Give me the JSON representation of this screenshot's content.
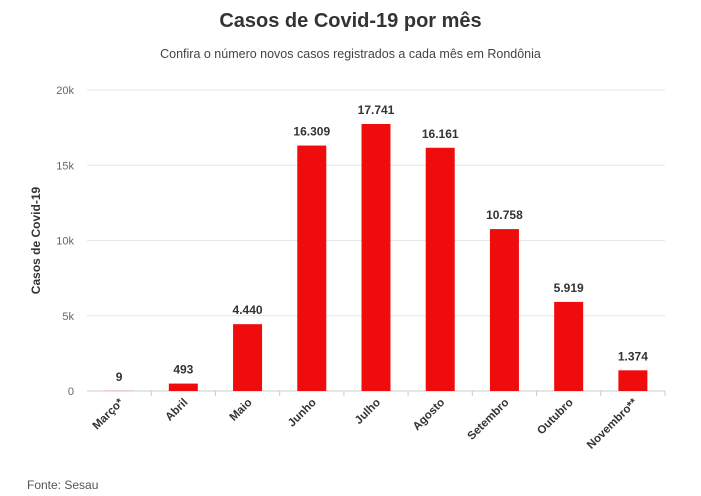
{
  "chart_data": {
    "type": "bar",
    "title": "Casos de Covid-19 por mês",
    "subtitle": "Confira o número novos casos registrados a cada mês em Rondônia",
    "ylabel": "Casos de Covid-19",
    "xlabel": "",
    "source": "Fonte: Sesau",
    "categories": [
      "Março*",
      "Abril",
      "Maio",
      "Junho",
      "Julho",
      "Agosto",
      "Setembro",
      "Outubro",
      "Novembro**"
    ],
    "values": [
      9,
      493,
      4440,
      16309,
      17741,
      16161,
      10758,
      5919,
      1374
    ],
    "data_labels": [
      "9",
      "493",
      "4.440",
      "16.309",
      "17.741",
      "16.161",
      "10.758",
      "5.919",
      "1.374"
    ],
    "yticks": [
      0,
      5000,
      10000,
      15000,
      20000
    ],
    "ytick_labels": [
      "0",
      "5k",
      "10k",
      "15k",
      "20k"
    ],
    "ylim": [
      0,
      20000
    ],
    "bar_color": "#f00c0c",
    "grid": true
  }
}
